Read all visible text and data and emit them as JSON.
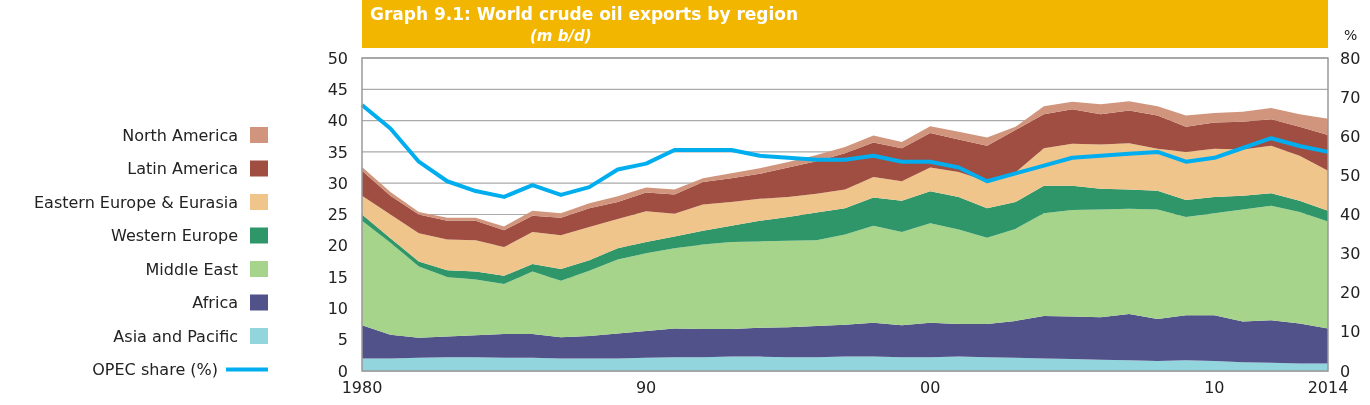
{
  "chart_data": {
    "type": "area",
    "title": "Graph 9.1: World crude oil exports by region",
    "subtitle": "(m b/d)",
    "y2label": "%",
    "x": [
      1980,
      1981,
      1982,
      1983,
      1984,
      1985,
      1986,
      1987,
      1988,
      1989,
      1990,
      1991,
      1992,
      1993,
      1994,
      1995,
      1996,
      1997,
      1998,
      1999,
      2000,
      2001,
      2002,
      2003,
      2004,
      2005,
      2006,
      2007,
      2008,
      2009,
      2010,
      2011,
      2012,
      2013,
      2014
    ],
    "stacked": true,
    "xlim": [
      1980,
      2014
    ],
    "xticks": [
      1980,
      {
        "value": 1990,
        "label": "90"
      },
      {
        "value": 2000,
        "label": "00"
      },
      {
        "value": 2010,
        "label": "10"
      },
      2014
    ],
    "ylim": [
      0,
      50
    ],
    "yticks": [
      0,
      5,
      10,
      15,
      20,
      25,
      30,
      35,
      40,
      45,
      50
    ],
    "y2lim": [
      0,
      80
    ],
    "y2ticks": [
      0,
      10,
      20,
      30,
      40,
      50,
      60,
      70,
      80
    ],
    "grid": "y",
    "legend": "left",
    "line_style": "solid",
    "series": [
      {
        "name": "Asia and Pacific",
        "color": "#93d5dc",
        "values": [
          2.0,
          2.0,
          2.1,
          2.2,
          2.2,
          2.1,
          2.1,
          2.0,
          2.0,
          2.0,
          2.1,
          2.2,
          2.2,
          2.3,
          2.3,
          2.2,
          2.2,
          2.3,
          2.3,
          2.2,
          2.2,
          2.3,
          2.2,
          2.1,
          2.0,
          1.9,
          1.8,
          1.7,
          1.6,
          1.7,
          1.6,
          1.4,
          1.3,
          1.2,
          1.2
        ]
      },
      {
        "name": "Africa",
        "color": "#51528a",
        "values": [
          5.3,
          3.8,
          3.2,
          3.3,
          3.5,
          3.8,
          3.8,
          3.4,
          3.6,
          4.0,
          4.3,
          4.6,
          4.5,
          4.4,
          4.6,
          4.8,
          5.0,
          5.1,
          5.4,
          5.1,
          5.5,
          5.2,
          5.3,
          5.9,
          6.8,
          6.8,
          6.8,
          7.4,
          6.7,
          7.2,
          7.3,
          6.5,
          6.8,
          6.4,
          5.6
        ]
      },
      {
        "name": "Middle East",
        "color": "#a5d48a",
        "values": [
          16.7,
          14.7,
          11.4,
          9.5,
          8.9,
          8.0,
          10.0,
          9.0,
          10.4,
          11.8,
          12.4,
          12.8,
          13.5,
          13.9,
          13.8,
          13.8,
          13.7,
          14.4,
          15.5,
          14.9,
          15.9,
          15.1,
          13.8,
          14.7,
          16.4,
          17.0,
          17.2,
          16.8,
          17.5,
          15.7,
          16.3,
          17.9,
          18.3,
          17.8,
          17.1
        ]
      },
      {
        "name": "Western Europe",
        "color": "#2f966a",
        "values": [
          1.0,
          0.7,
          0.8,
          1.1,
          1.3,
          1.3,
          1.2,
          1.9,
          1.7,
          1.8,
          1.8,
          1.9,
          2.2,
          2.6,
          3.3,
          3.8,
          4.4,
          4.2,
          4.5,
          5.0,
          5.1,
          5.2,
          4.7,
          4.3,
          4.4,
          3.9,
          3.3,
          3.1,
          3.0,
          2.7,
          2.6,
          2.2,
          2.0,
          1.8,
          1.7
        ]
      },
      {
        "name": "Eastern Europe & Eurasia",
        "color": "#f0c58c",
        "values": [
          3.0,
          3.8,
          4.5,
          4.9,
          5.0,
          4.6,
          5.1,
          5.4,
          5.3,
          4.7,
          4.9,
          3.6,
          4.2,
          3.8,
          3.5,
          3.2,
          3.0,
          3.0,
          3.3,
          3.1,
          3.8,
          4.0,
          4.3,
          4.7,
          6.0,
          6.7,
          7.1,
          7.4,
          6.7,
          7.7,
          7.7,
          7.4,
          7.6,
          7.2,
          6.4
        ]
      },
      {
        "name": "Latin America",
        "color": "#a04e42",
        "values": [
          4.0,
          3.0,
          3.0,
          3.0,
          3.1,
          2.7,
          2.6,
          2.8,
          3.0,
          2.7,
          3.0,
          3.1,
          3.6,
          3.8,
          4.0,
          4.7,
          5.2,
          5.8,
          5.5,
          5.3,
          5.5,
          5.2,
          5.7,
          6.8,
          5.4,
          5.5,
          4.8,
          5.2,
          5.3,
          4.0,
          4.2,
          4.4,
          4.2,
          4.6,
          5.7
        ]
      },
      {
        "name": "North America",
        "color": "#d0957c",
        "values": [
          0.6,
          0.6,
          0.4,
          0.5,
          0.5,
          0.6,
          0.8,
          0.7,
          0.8,
          0.9,
          0.8,
          0.8,
          0.6,
          0.8,
          0.9,
          0.9,
          1.0,
          1.0,
          1.1,
          1.0,
          1.1,
          1.2,
          1.3,
          0.5,
          1.3,
          1.2,
          1.6,
          1.5,
          1.5,
          1.8,
          1.5,
          1.6,
          1.8,
          2.0,
          2.6
        ]
      },
      {
        "name": "OPEC share (%)",
        "type": "line",
        "axis": "y2",
        "color": "#00aeef",
        "values": [
          68,
          62,
          53.5,
          48.5,
          46,
          44.5,
          47.5,
          45,
          47,
          51.5,
          53,
          56.5,
          56.5,
          56.5,
          55,
          54.5,
          54,
          54,
          55,
          53.5,
          53.5,
          52,
          48.5,
          50.5,
          52.5,
          54.5,
          55,
          55.5,
          56,
          53.5,
          54.5,
          57,
          59.5,
          57.5,
          56
        ]
      }
    ]
  }
}
